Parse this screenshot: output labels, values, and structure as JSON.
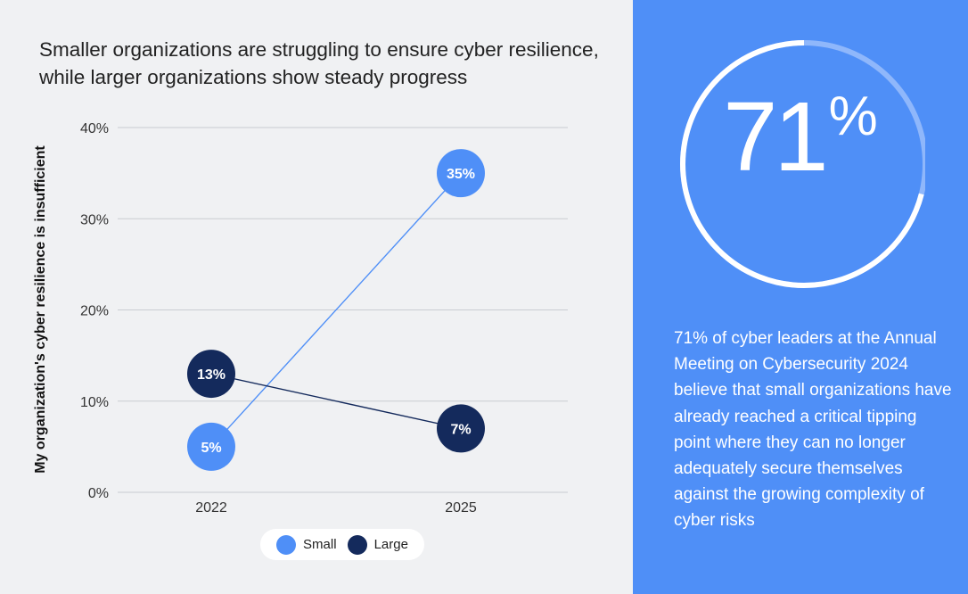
{
  "title": "Smaller organizations are struggling to ensure cyber resilience, while larger organizations show steady progress",
  "chart_data": {
    "type": "line",
    "title": "Smaller organizations are struggling to ensure cyber resilience, while larger organizations show steady progress",
    "xlabel": "",
    "ylabel": "My organization's cyber resilience is insufficient",
    "categories": [
      "2022",
      "2025"
    ],
    "yticks": [
      "0%",
      "10%",
      "20%",
      "30%",
      "40%"
    ],
    "ylim": [
      0,
      40
    ],
    "grid": true,
    "legend_position": "bottom",
    "series": [
      {
        "name": "Small",
        "values": [
          5,
          35
        ],
        "labels": [
          "5%",
          "35%"
        ],
        "color": "#4f8ff7"
      },
      {
        "name": "Large",
        "values": [
          13,
          7
        ],
        "labels": [
          "13%",
          "7%"
        ],
        "color": "#142a5c"
      }
    ]
  },
  "stat": {
    "value": "71",
    "unit": "%",
    "fraction": 0.71,
    "description": "71% of cyber leaders at the Annual Meeting on Cybersecurity 2024 believe that small organizations have already reached a critical tipping point where they can no longer adequately secure themselves against the growing complexity of cyber risks"
  },
  "colors": {
    "panel": "#4f8ff7",
    "small": "#4f8ff7",
    "large": "#142a5c",
    "grid": "#c9ccd2"
  }
}
